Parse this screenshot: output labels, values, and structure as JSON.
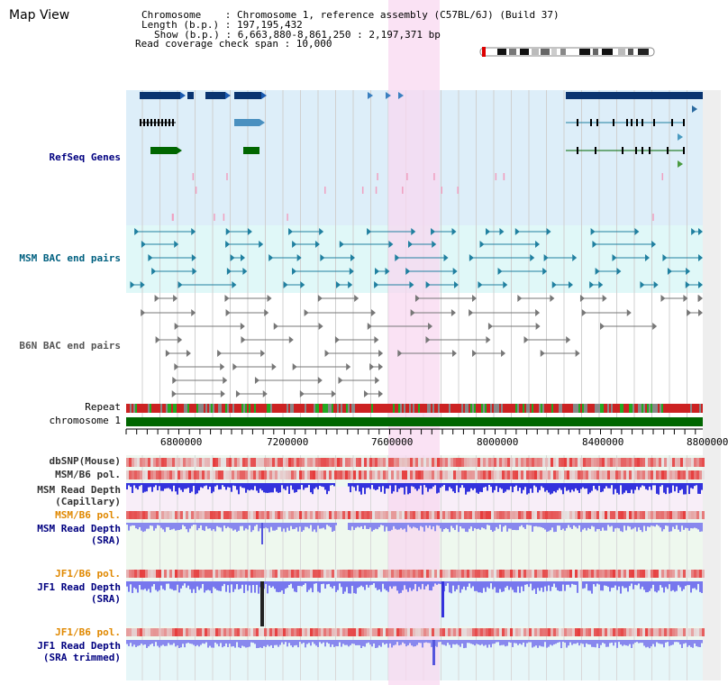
{
  "panel_title": "Map View",
  "header": {
    "line1": "Chromosome    : Chromosome 1, reference assembly (C57BL/6J) (Build 37)",
    "line2": "Length (b.p.) : 197,195,432",
    "line3": "Show (b.p.) : 6,663,880-8,861,250 : 2,197,371 bp",
    "line4": "Read coverage check span : 10,000"
  },
  "tracks": {
    "refseq": "RefSeq Genes",
    "msm_bac": "MSM BAC end pairs",
    "b6n_bac": "B6N BAC end pairs",
    "repeat": "Repeat",
    "chromosome": "chromosome 1",
    "dbsnp": "dbSNP(Mouse)",
    "msm_pol1": "MSM/B6 pol.",
    "msm_depth_cap_1": "MSM Read Depth",
    "msm_depth_cap_2": "(Capillary)",
    "msm_pol2": "MSM/B6 pol.",
    "msm_depth_sra_1": "MSM Read Depth",
    "msm_depth_sra_2": "(SRA)",
    "jf1_pol1": "JF1/B6 pol.",
    "jf1_depth_1": "JF1 Read Depth",
    "jf1_depth_2": "(SRA)",
    "jf1_pol2": "JF1/B6 pol.",
    "jf1_depth_trim_1": "JF1 Read Depth",
    "jf1_depth_trim_2": "(SRA trimmed)"
  },
  "axis": {
    "ticks": [
      "6800000",
      "7200000",
      "7600000",
      "8000000",
      "8400000",
      "8800000"
    ]
  },
  "colors": {
    "refseq_bg": "#ddeef9",
    "msm_bg": "#e0f8f8",
    "highlight": "#f8d8f0",
    "chromosome": "#006600",
    "depth_blue": "#3333dd",
    "depth_light": "#9999ee",
    "pol_red": "#ee4444"
  }
}
